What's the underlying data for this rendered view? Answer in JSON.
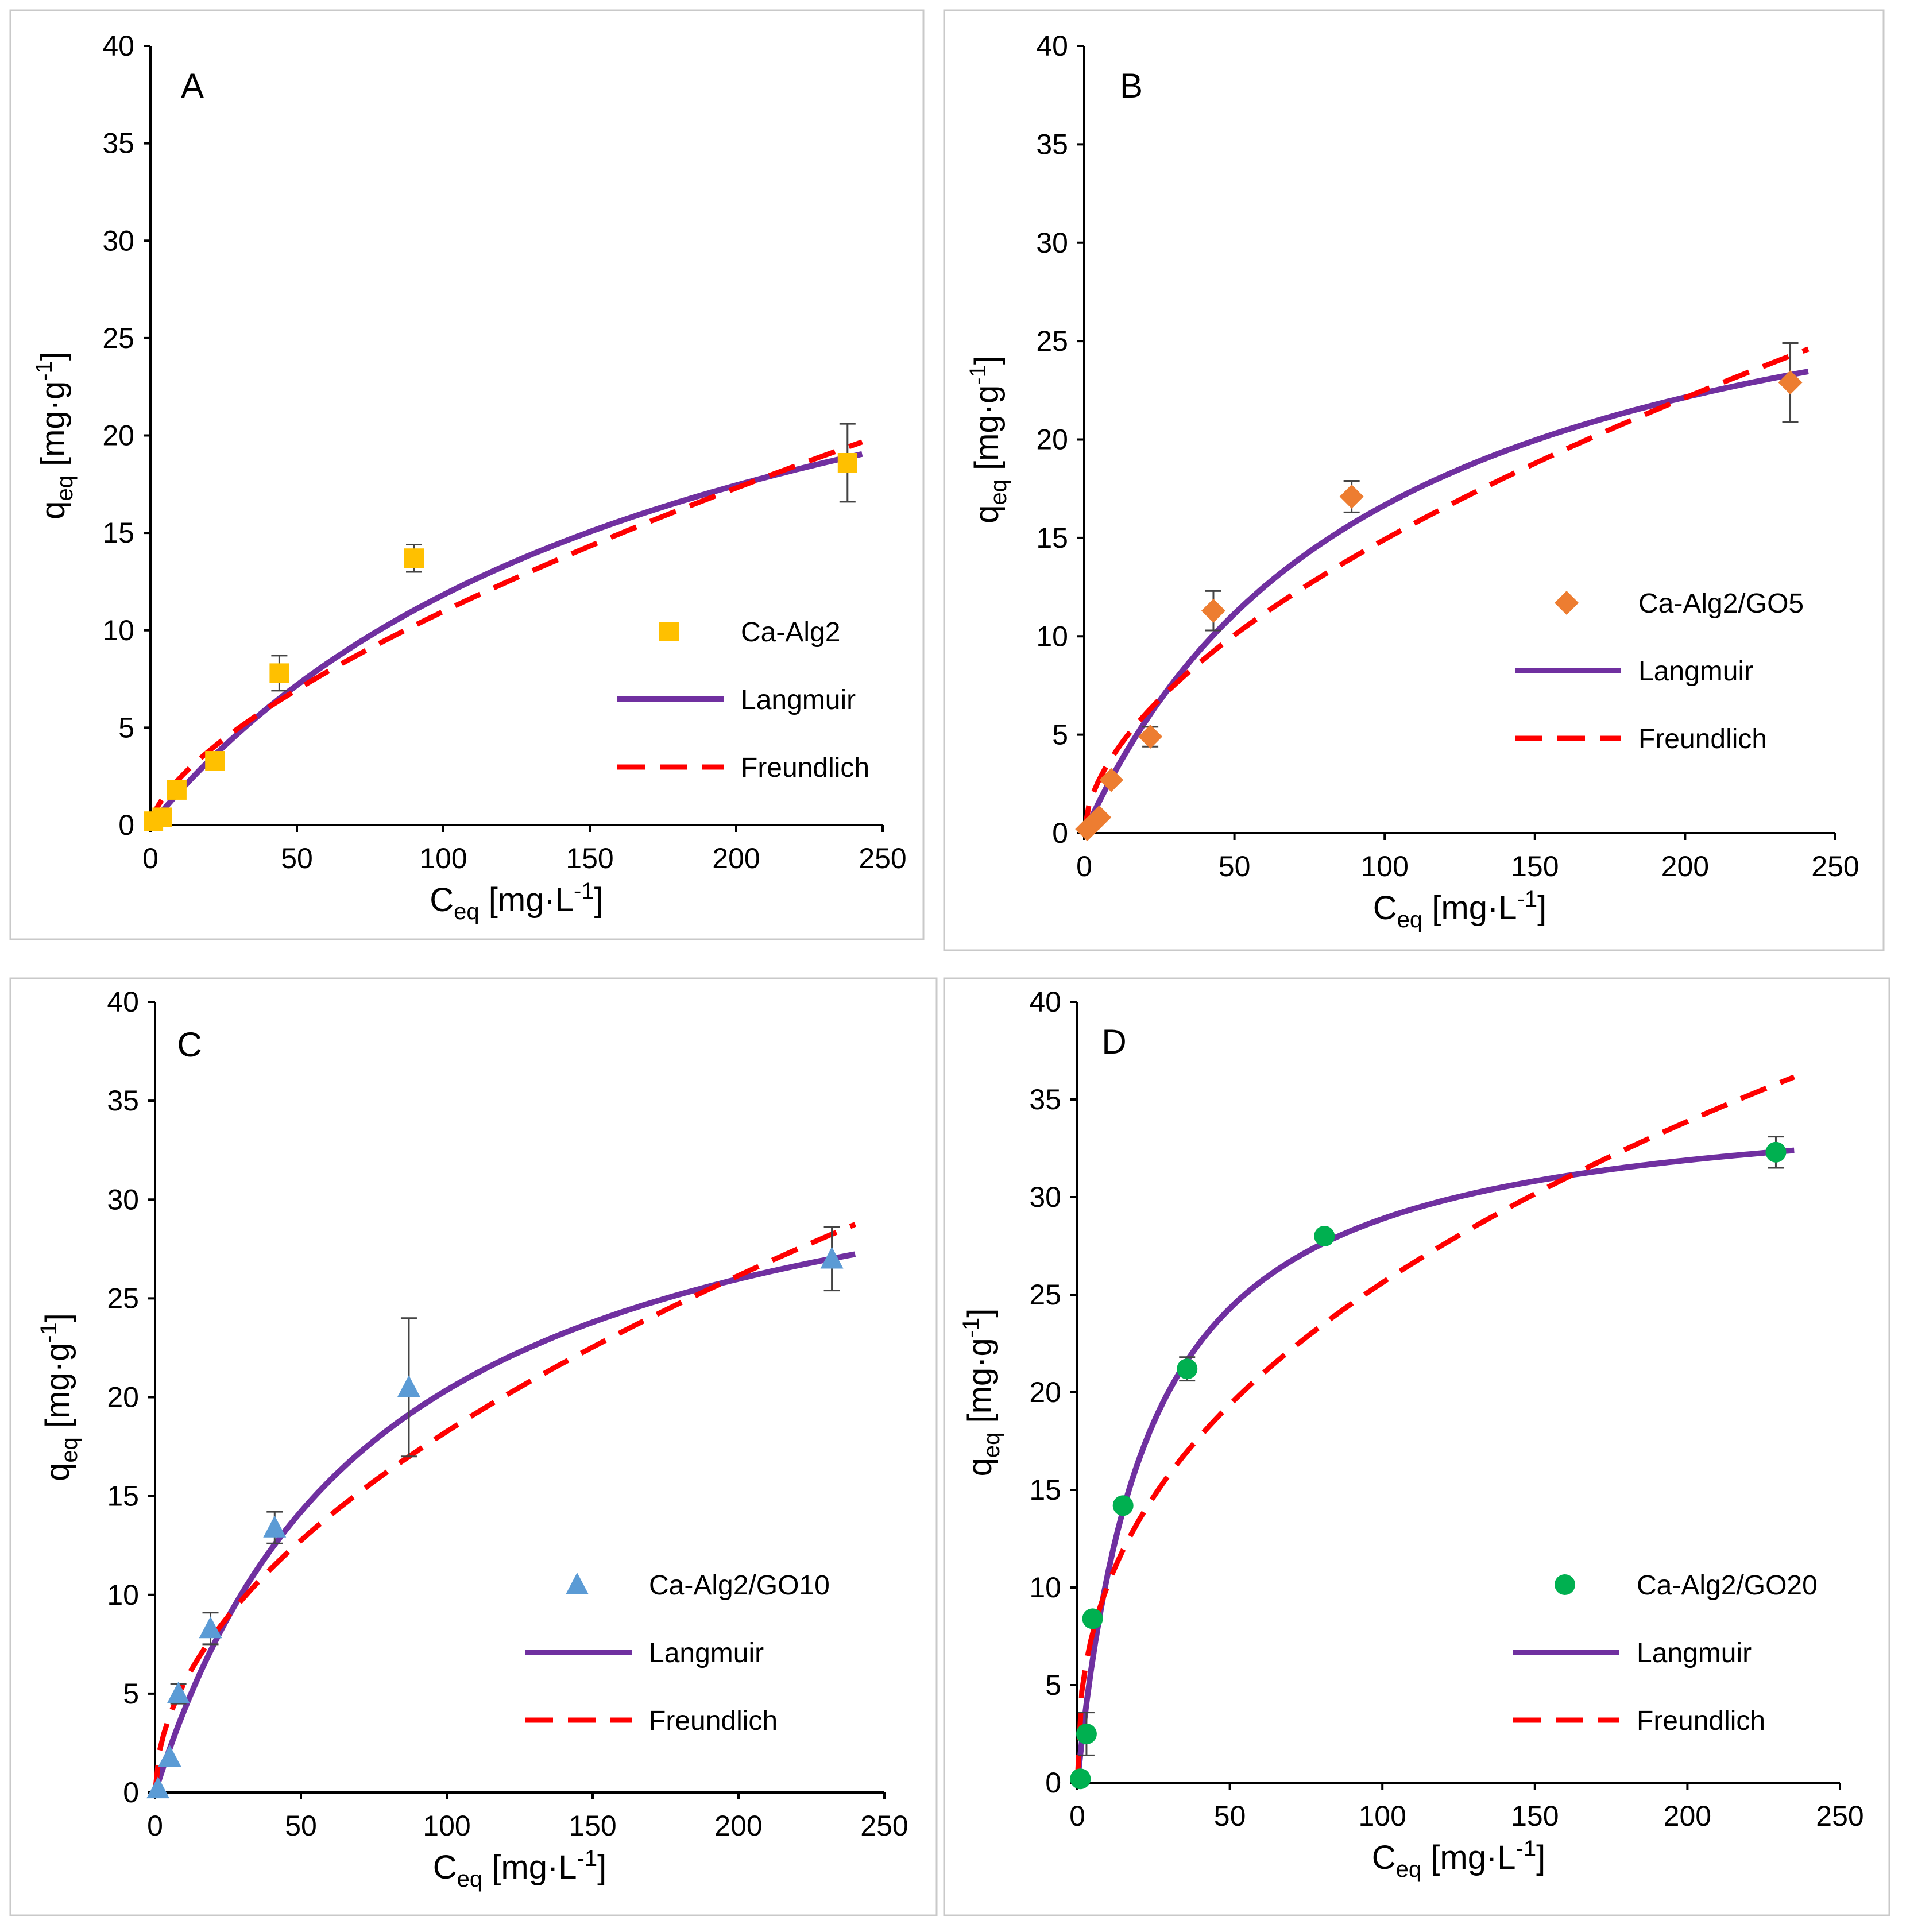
{
  "colors": {
    "langmuir": "#7030a0",
    "freundlich": "#ff0000",
    "axis": "#000000",
    "error_bar": "#444444"
  },
  "chart_data": [
    {
      "panel": "A",
      "type": "scatter",
      "xlabel": {
        "main": "C",
        "sub": "eq",
        "unit_pre": " [mg·L",
        "unit_sup": "-1",
        "unit_post": "]"
      },
      "ylabel": {
        "main": "q",
        "sub": "eq",
        "unit_pre": " [mg·g",
        "unit_sup": "-1",
        "unit_post": "]"
      },
      "xlim": [
        0,
        250
      ],
      "ylim": [
        0,
        40
      ],
      "xticks": [
        0,
        50,
        100,
        150,
        200,
        250
      ],
      "yticks": [
        0,
        5,
        10,
        15,
        20,
        25,
        30,
        35,
        40
      ],
      "legend_position": "right-middle",
      "series": [
        {
          "name": "Ca-Alg2",
          "kind": "markers",
          "marker": "square",
          "color": "#ffc000",
          "x": [
            1,
            4,
            9,
            22,
            44,
            90,
            238
          ],
          "y": [
            0.2,
            0.4,
            1.8,
            3.3,
            7.8,
            13.7,
            18.6
          ],
          "err": [
            0,
            0,
            0,
            0,
            0.9,
            0.7,
            2.0
          ]
        },
        {
          "name": "Langmuir",
          "kind": "line",
          "style": "solid",
          "color": "#7030a0",
          "model": "langmuir",
          "qmax": 33.3,
          "K": 0.0055,
          "x_range": [
            0,
            243
          ]
        },
        {
          "name": "Freundlich",
          "kind": "line",
          "style": "dashed",
          "color": "#ff0000",
          "model": "freundlich",
          "K": 0.53,
          "n": 1.52,
          "x_range": [
            0,
            243
          ]
        }
      ]
    },
    {
      "panel": "B",
      "type": "scatter",
      "xlabel": {
        "main": "C",
        "sub": "eq",
        "unit_pre": " [mg·L",
        "unit_sup": "-1",
        "unit_post": "]"
      },
      "ylabel": {
        "main": "q",
        "sub": "eq",
        "unit_pre": " [mg·g",
        "unit_sup": "-1",
        "unit_post": "]"
      },
      "xlim": [
        0,
        250
      ],
      "ylim": [
        0,
        40
      ],
      "xticks": [
        0,
        50,
        100,
        150,
        200,
        250
      ],
      "yticks": [
        0,
        5,
        10,
        15,
        20,
        25,
        30,
        35,
        40
      ],
      "legend_position": "right-middle",
      "series": [
        {
          "name": "Ca-Alg2/GO5",
          "kind": "markers",
          "marker": "diamond",
          "color": "#ed7d31",
          "x": [
            1,
            5,
            9,
            22,
            43,
            89,
            235
          ],
          "y": [
            0.2,
            0.8,
            2.7,
            4.9,
            11.3,
            17.1,
            22.9
          ],
          "err": [
            0,
            0,
            0,
            0.5,
            1.0,
            0.8,
            2.0
          ]
        },
        {
          "name": "Langmuir",
          "kind": "line",
          "style": "solid",
          "color": "#7030a0",
          "model": "langmuir",
          "qmax": 33.0,
          "K": 0.0102,
          "x_range": [
            0,
            241
          ]
        },
        {
          "name": "Freundlich",
          "kind": "line",
          "style": "dashed",
          "color": "#ff0000",
          "model": "freundlich",
          "K": 1.09,
          "n": 1.76,
          "x_range": [
            0,
            241
          ]
        }
      ]
    },
    {
      "panel": "C",
      "type": "scatter",
      "xlabel": {
        "main": "C",
        "sub": "eq",
        "unit_pre": " [mg·L",
        "unit_sup": "-1",
        "unit_post": "]"
      },
      "ylabel": {
        "main": "q",
        "sub": "eq",
        "unit_pre": " [mg·g",
        "unit_sup": "-1",
        "unit_post": "]"
      },
      "xlim": [
        0,
        250
      ],
      "ylim": [
        0,
        40
      ],
      "xticks": [
        0,
        50,
        100,
        150,
        200,
        250
      ],
      "yticks": [
        0,
        5,
        10,
        15,
        20,
        25,
        30,
        35,
        40
      ],
      "legend_position": "right-middle",
      "series": [
        {
          "name": "Ca-Alg2/GO10",
          "kind": "markers",
          "marker": "triangle",
          "color": "#5b9bd5",
          "x": [
            1,
            5,
            8,
            19,
            41,
            87,
            232
          ],
          "y": [
            0.2,
            1.8,
            5.0,
            8.3,
            13.4,
            20.5,
            27.0
          ],
          "err": [
            0,
            0,
            0.5,
            0.8,
            0.8,
            3.5,
            1.6
          ]
        },
        {
          "name": "Langmuir",
          "kind": "line",
          "style": "solid",
          "color": "#7030a0",
          "model": "langmuir",
          "qmax": 35.9,
          "K": 0.0131,
          "x_range": [
            0,
            240
          ]
        },
        {
          "name": "Freundlich",
          "kind": "line",
          "style": "dashed",
          "color": "#ff0000",
          "model": "freundlich",
          "K": 1.68,
          "n": 1.93,
          "x_range": [
            0,
            240
          ]
        }
      ]
    },
    {
      "panel": "D",
      "type": "scatter",
      "xlabel": {
        "main": "C",
        "sub": "eq",
        "unit_pre": " [mg·L",
        "unit_sup": "-1",
        "unit_post": "]"
      },
      "ylabel": {
        "main": "q",
        "sub": "eq",
        "unit_pre": " [mg·g",
        "unit_sup": "-1",
        "unit_post": "]"
      },
      "xlim": [
        0,
        250
      ],
      "ylim": [
        0,
        40
      ],
      "xticks": [
        0,
        50,
        100,
        150,
        200,
        250
      ],
      "yticks": [
        0,
        5,
        10,
        15,
        20,
        25,
        30,
        35,
        40
      ],
      "legend_position": "right-middle",
      "series": [
        {
          "name": "Ca-Alg2/GO20",
          "kind": "markers",
          "marker": "circle",
          "color": "#00b050",
          "x": [
            1,
            3,
            5,
            15,
            36,
            81,
            229
          ],
          "y": [
            0.2,
            2.5,
            8.4,
            14.2,
            21.2,
            28.0,
            32.3
          ],
          "err": [
            0,
            1.1,
            0,
            0,
            0.6,
            0,
            0.8
          ]
        },
        {
          "name": "Langmuir",
          "kind": "line",
          "style": "solid",
          "color": "#7030a0",
          "model": "langmuir",
          "qmax": 35.6,
          "K": 0.043,
          "x_range": [
            0,
            235
          ]
        },
        {
          "name": "Freundlich",
          "kind": "line",
          "style": "dashed",
          "color": "#ff0000",
          "model": "freundlich",
          "K": 4.0,
          "n": 2.48,
          "x_range": [
            0,
            235
          ]
        }
      ]
    }
  ]
}
